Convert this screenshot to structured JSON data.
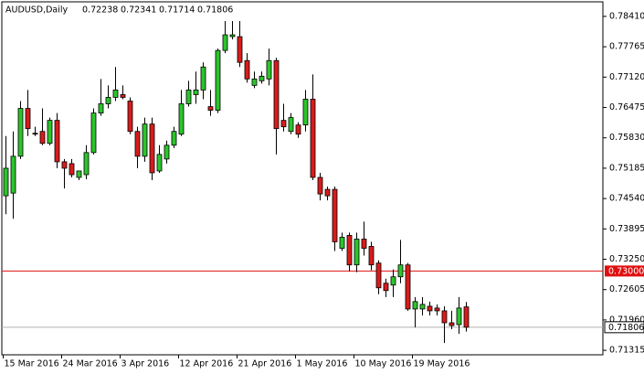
{
  "chart_data": {
    "type": "candlestick",
    "title": "AUDUSD,Daily",
    "categories": [
      "15 Mar 2016",
      null,
      null,
      null,
      null,
      null,
      null,
      null,
      "24 Mar 2016",
      null,
      null,
      null,
      null,
      null,
      null,
      null,
      "3 Apr 2016",
      null,
      null,
      null,
      null,
      null,
      null,
      null,
      "12 Apr 2016",
      null,
      null,
      null,
      null,
      null,
      null,
      null,
      "21 Apr 2016",
      null,
      null,
      null,
      null,
      null,
      null,
      null,
      "1 May 2016",
      null,
      null,
      null,
      null,
      null,
      null,
      null,
      "10 May 2016",
      null,
      null,
      null,
      null,
      null,
      null,
      null,
      "19 May 2016",
      null,
      null,
      null,
      null,
      null,
      null,
      null
    ],
    "open": [
      0.74598,
      0.74656,
      0.75438,
      0.76455,
      0.75927,
      0.75966,
      0.75712,
      0.76201,
      0.75321,
      0.75282,
      0.74989,
      0.75047,
      0.75517,
      0.76357,
      0.76553,
      0.7669,
      0.76748,
      0.76611,
      0.75966,
      0.75438,
      0.76123,
      0.75126,
      0.7538,
      0.75673,
      0.75908,
      0.76553,
      0.76748,
      0.76846,
      0.76494,
      0.76416,
      0.77687,
      0.7798,
      0.7798,
      0.77472,
      0.76944,
      0.77042,
      0.77081,
      0.77472,
      0.76201,
      0.75966,
      0.76103,
      0.76103,
      0.76651,
      0.74989,
      0.74735,
      0.74735,
      0.73483,
      0.73757,
      0.7313,
      0.73679,
      0.73523,
      0.73169,
      0.72741,
      0.72701,
      0.72877,
      0.7313,
      0.72193,
      0.72193,
      0.72252,
      0.72213,
      0.72154,
      0.719,
      0.71861,
      0.72238
    ],
    "high": [
      0.75869,
      0.75966,
      0.76611,
      0.76846,
      0.76064,
      0.76455,
      0.7626,
      0.76357,
      0.7538,
      0.7538,
      0.75126,
      0.75673,
      0.76455,
      0.77081,
      0.76944,
      0.77335,
      0.76944,
      0.7669,
      0.76064,
      0.7626,
      0.7626,
      0.75673,
      0.75771,
      0.76064,
      0.76846,
      0.77042,
      0.77237,
      0.77433,
      0.76846,
      0.77726,
      0.78312,
      0.78312,
      0.78312,
      0.77628,
      0.77237,
      0.77237,
      0.77726,
      0.7753,
      0.76553,
      0.76357,
      0.76162,
      0.76846,
      0.77178,
      0.75087,
      0.74794,
      0.74794,
      0.73816,
      0.73816,
      0.73816,
      0.7405,
      0.73621,
      0.73228,
      0.72838,
      0.73033,
      0.7366,
      0.73169,
      0.72447,
      0.72447,
      0.7235,
      0.72291,
      0.72252,
      0.72154,
      0.72447,
      0.72341
    ],
    "low": [
      0.74207,
      0.74109,
      0.7538,
      0.75869,
      0.75869,
      0.75673,
      0.75673,
      0.75184,
      0.74754,
      0.74989,
      0.7493,
      0.7495,
      0.75478,
      0.76299,
      0.76455,
      0.76611,
      0.76651,
      0.75908,
      0.75184,
      0.75321,
      0.7493,
      0.75087,
      0.75282,
      0.75614,
      0.75869,
      0.76494,
      0.76553,
      0.76651,
      0.76299,
      0.76357,
      0.77628,
      0.77921,
      0.77335,
      0.77002,
      0.76885,
      0.76983,
      0.76944,
      0.75478,
      0.75966,
      0.75908,
      0.75829,
      0.75966,
      0.7493,
      0.745,
      0.745,
      0.73425,
      0.73425,
      0.72994,
      0.72975,
      0.73327,
      0.73014,
      0.72506,
      0.72447,
      0.72447,
      0.72741,
      0.72154,
      0.71802,
      0.72056,
      0.72056,
      0.72056,
      0.7147,
      0.71763,
      0.71665,
      0.71714
    ],
    "close": [
      0.75184,
      0.75438,
      0.76455,
      0.76025,
      0.75908,
      0.75712,
      0.76201,
      0.75321,
      0.75184,
      0.75047,
      0.75126,
      0.75517,
      0.76357,
      0.76553,
      0.7669,
      0.76846,
      0.7669,
      0.75966,
      0.75438,
      0.76123,
      0.75087,
      0.75478,
      0.75673,
      0.75966,
      0.76553,
      0.76846,
      0.76846,
      0.77335,
      0.76416,
      0.77687,
      0.78019,
      0.78019,
      0.77433,
      0.77081,
      0.77081,
      0.77139,
      0.77472,
      0.76025,
      0.76064,
      0.7626,
      0.75908,
      0.76651,
      0.74989,
      0.74637,
      0.74598,
      0.73621,
      0.73718,
      0.7313,
      0.73679,
      0.73483,
      0.7313,
      0.72643,
      0.72584,
      0.72877,
      0.7313,
      0.72193,
      0.7235,
      0.72291,
      0.72154,
      0.72154,
      0.719,
      0.71841,
      0.72213,
      0.71806
    ],
    "up_color": "#2bc52b",
    "down_color": "#d81c1c",
    "ylim": [
      0.7122,
      0.787
    ],
    "yticks": [
      {
        "value": 0.7841,
        "label": "0.78410"
      },
      {
        "value": 0.77765,
        "label": "0.77765"
      },
      {
        "value": 0.7712,
        "label": "0.77120"
      },
      {
        "value": 0.76475,
        "label": "0.76475"
      },
      {
        "value": 0.7583,
        "label": "0.75830"
      },
      {
        "value": 0.75185,
        "label": "0.75185"
      },
      {
        "value": 0.7454,
        "label": "0.74540"
      },
      {
        "value": 0.73895,
        "label": "0.73895"
      },
      {
        "value": 0.7325,
        "label": "0.73250"
      },
      {
        "value": 0.72605,
        "label": "0.72605"
      },
      {
        "value": 0.7196,
        "label": "0.71960"
      },
      {
        "value": 0.71315,
        "label": "0.71315"
      }
    ],
    "level": {
      "value": 0.73,
      "label": "0.73000",
      "color": "#e01010"
    },
    "price_line_color": "#b0b0b0"
  }
}
